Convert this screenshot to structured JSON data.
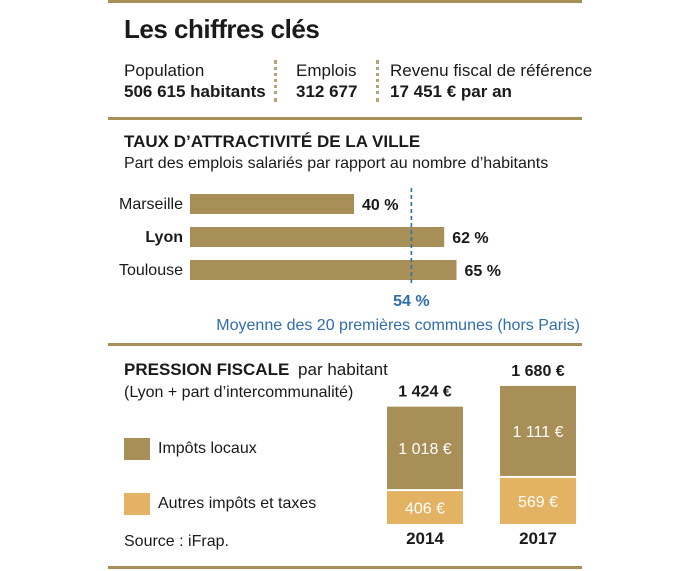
{
  "title": "Les chiffres clés",
  "stats": [
    {
      "label": "Population",
      "value": "506 615 habitants"
    },
    {
      "label": "Emplois",
      "value": "312 677"
    },
    {
      "label": "Revenu fiscal de référence",
      "value": "17 451 € par an"
    }
  ],
  "colors": {
    "accent": "#a88f57",
    "bar": "#a88f57",
    "local": "#a88f57",
    "other": "#e3b262",
    "mean": "#2f6ead"
  },
  "chart_data": [
    {
      "type": "bar",
      "orientation": "horizontal",
      "title": "TAUX D’ATTRACTIVITÉ DE LA VILLE",
      "subtitle": "Part des emplois salariés par rapport au nombre d’habitants",
      "categories": [
        "Marseille",
        "Lyon",
        "Toulouse"
      ],
      "values": [
        40,
        62,
        65
      ],
      "value_labels": [
        "40 %",
        "62 %",
        "65 %"
      ],
      "highlight": "Lyon",
      "reference": {
        "value": 54,
        "label": "54 %",
        "caption": "Moyenne des 20 premières communes (hors Paris)"
      },
      "xlim": [
        0,
        100
      ]
    },
    {
      "type": "bar",
      "stacked": true,
      "title": "PRESSION FISCALE",
      "title_suffix": "par habitant",
      "subtitle": "(Lyon + part d’intercommunalité)",
      "categories": [
        "2014",
        "2017"
      ],
      "totals": [
        "1 424 €",
        "1 680 €"
      ],
      "series": [
        {
          "name": "Impôts locaux",
          "values": [
            1018,
            1111
          ],
          "labels": [
            "1 018 €",
            "1 111 €"
          ]
        },
        {
          "name": "Autres impôts et taxes",
          "values": [
            406,
            569
          ],
          "labels": [
            "406 €",
            "569 €"
          ]
        }
      ],
      "ylim": [
        0,
        1700
      ]
    }
  ],
  "source": "Source : iFrap."
}
